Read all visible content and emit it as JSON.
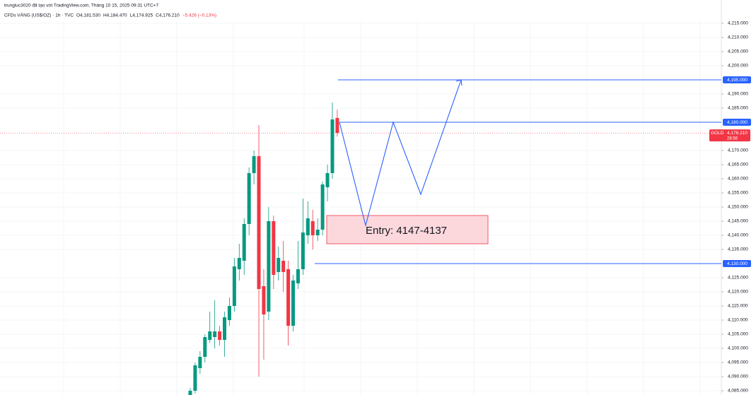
{
  "chart_data": {
    "type": "candlestick",
    "credit": "trungluc3020 đã tạo với TradingView.com, Tháng 10 15, 2025 09:31 UTC+7",
    "title": "CFDs VÀNG (US$/OZ) · 1h · TVC",
    "ohlc_text": [
      "O4,181.530",
      "H4,184.470",
      "L4,174.925",
      "C4,176.210",
      "−5.426 (−0.13%)"
    ],
    "open": [
      4083.5,
      4085,
      4093,
      4097,
      4103,
      4104,
      4106,
      4103,
      4110,
      4115,
      4128,
      4131,
      4144,
      4162,
      4168,
      4122,
      4113,
      4145,
      4127,
      4131,
      4128,
      4108,
      4123,
      4128,
      4140,
      4145,
      4140,
      4142,
      4157,
      4162,
      4181.53
    ],
    "high": [
      4086,
      4095,
      4099,
      4105,
      4113,
      4117,
      4108,
      4113,
      4118,
      4132,
      4137,
      4146,
      4164,
      4170,
      4179,
      4128,
      4150,
      4147,
      4136,
      4138,
      4131,
      4126,
      4138,
      4153,
      4152,
      4149,
      4146,
      4159,
      4165,
      4187,
      4184.47
    ],
    "low": [
      4083.5,
      4084,
      4091,
      4095,
      4102,
      4100,
      4101,
      4097,
      4108,
      4113,
      4124,
      4126,
      4140,
      4158,
      4090,
      4096,
      4110,
      4121,
      4124,
      4120,
      4101,
      4106,
      4121,
      4126,
      4137,
      4135,
      4138,
      4140,
      4152,
      4160,
      4174.925
    ],
    "close": [
      4085,
      4094,
      4097,
      4104,
      4106,
      4106,
      4103,
      4111,
      4115,
      4129,
      4132,
      4144,
      4162,
      4168,
      4121,
      4112,
      4145,
      4126,
      4132,
      4127,
      4108,
      4124,
      4128,
      4141,
      4146,
      4140,
      4142,
      4158,
      4162,
      4181,
      4176.21
    ],
    "up_color": "#089981",
    "down_color": "#f23645",
    "ylim": [
      4083.5,
      4223.25
    ],
    "yticks": [
      {
        "value": 4085,
        "label": "4,085.000"
      },
      {
        "value": 4090,
        "label": "4,090.000"
      },
      {
        "value": 4095,
        "label": "4,095.000"
      },
      {
        "value": 4100,
        "label": "4,100.000"
      },
      {
        "value": 4105,
        "label": "4,105.000"
      },
      {
        "value": 4110,
        "label": "4,110.000"
      },
      {
        "value": 4115,
        "label": "4,115.000"
      },
      {
        "value": 4120,
        "label": "4,120.000"
      },
      {
        "value": 4125,
        "label": "4,125.000"
      },
      {
        "value": 4135,
        "label": "4,135.000"
      },
      {
        "value": 4140,
        "label": "4,140.000"
      },
      {
        "value": 4145,
        "label": "4,145.000"
      },
      {
        "value": 4150,
        "label": "4,150.000"
      },
      {
        "value": 4155,
        "label": "4,155.000"
      },
      {
        "value": 4160,
        "label": "4,160.000"
      },
      {
        "value": 4165,
        "label": "4,165.000"
      },
      {
        "value": 4170,
        "label": "4,170.000"
      },
      {
        "value": 4185,
        "label": "4,185.000"
      },
      {
        "value": 4190,
        "label": "4,190.000"
      },
      {
        "value": 4200,
        "label": "4,200.000"
      },
      {
        "value": 4205,
        "label": "4,205.000"
      },
      {
        "value": 4210,
        "label": "4,210.000"
      },
      {
        "value": 4215,
        "label": "4,215.000"
      }
    ],
    "grid": true,
    "levels": [
      {
        "value": 4195,
        "label": "4,195.000"
      },
      {
        "value": 4180,
        "label": "4,180.000"
      },
      {
        "value": 4130,
        "label": "4,130.000"
      }
    ],
    "level_color": "#2962ff",
    "last_price": {
      "symbol": "GOLD",
      "price": {
        "value": 4176.21,
        "label": "4,176.210"
      },
      "countdown": "28:56"
    },
    "projection": [
      4180,
      4143.5,
      4180,
      4154.5,
      4195
    ],
    "entry_zone": {
      "top": 4147,
      "bottom": 4137,
      "label": "Entry: 4147-4137"
    }
  }
}
